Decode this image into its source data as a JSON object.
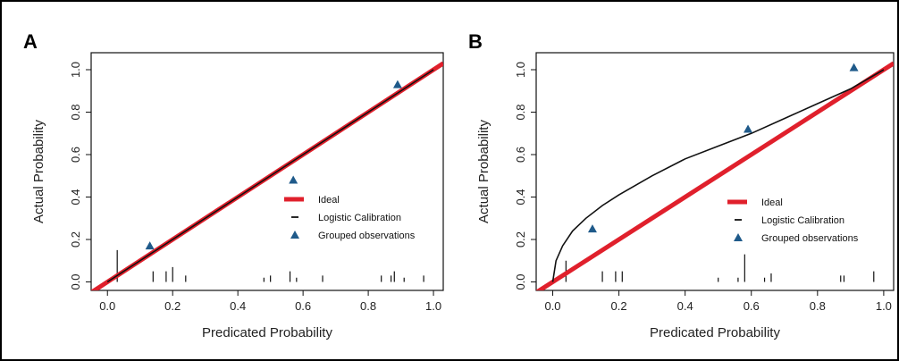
{
  "chart_data": [
    {
      "type": "line",
      "panel_label": "A",
      "xlabel": "Predicated Probability",
      "ylabel": "Actual Probability",
      "xlim": [
        -0.05,
        1.03
      ],
      "ylim": [
        -0.04,
        1.08
      ],
      "xticks": [
        "0.0",
        "0.2",
        "0.4",
        "0.6",
        "0.8",
        "1.0"
      ],
      "yticks": [
        "0.0",
        "0.2",
        "0.4",
        "0.6",
        "0.8",
        "1.0"
      ],
      "legend": {
        "position": "right",
        "entries": [
          "Ideal",
          "Logistic Calibration",
          "Grouped observations"
        ]
      },
      "series": [
        {
          "name": "Ideal",
          "color": "#e0202c",
          "x": [
            -0.05,
            1.03
          ],
          "y": [
            -0.05,
            1.03
          ]
        },
        {
          "name": "Logistic Calibration",
          "color": "#111111",
          "x": [
            0.0,
            0.2,
            0.4,
            0.6,
            0.8,
            1.0
          ],
          "y": [
            0.0,
            0.2,
            0.4,
            0.6,
            0.8,
            1.0
          ]
        },
        {
          "name": "Grouped observations",
          "color": "#1f5a8a",
          "x": [
            0.13,
            0.57,
            0.89
          ],
          "y": [
            0.17,
            0.48,
            0.93
          ]
        }
      ],
      "rug": [
        {
          "x": 0.03,
          "h": 0.15
        },
        {
          "x": 0.14,
          "h": 0.05
        },
        {
          "x": 0.18,
          "h": 0.05
        },
        {
          "x": 0.2,
          "h": 0.07
        },
        {
          "x": 0.24,
          "h": 0.03
        },
        {
          "x": 0.48,
          "h": 0.02
        },
        {
          "x": 0.5,
          "h": 0.03
        },
        {
          "x": 0.56,
          "h": 0.05
        },
        {
          "x": 0.58,
          "h": 0.02
        },
        {
          "x": 0.66,
          "h": 0.03
        },
        {
          "x": 0.84,
          "h": 0.03
        },
        {
          "x": 0.87,
          "h": 0.03
        },
        {
          "x": 0.88,
          "h": 0.05
        },
        {
          "x": 0.91,
          "h": 0.02
        },
        {
          "x": 0.97,
          "h": 0.03
        }
      ]
    },
    {
      "type": "line",
      "panel_label": "B",
      "xlabel": "Predicated Probability",
      "ylabel": "Actual Probability",
      "xlim": [
        -0.05,
        1.03
      ],
      "ylim": [
        -0.04,
        1.08
      ],
      "xticks": [
        "0.0",
        "0.2",
        "0.4",
        "0.6",
        "0.8",
        "1.0"
      ],
      "yticks": [
        "0.0",
        "0.2",
        "0.4",
        "0.6",
        "0.8",
        "1.0"
      ],
      "legend": {
        "position": "right",
        "entries": [
          "Ideal",
          "Logistic Calibration",
          "Grouped observations"
        ]
      },
      "series": [
        {
          "name": "Ideal",
          "color": "#e0202c",
          "x": [
            -0.05,
            1.03
          ],
          "y": [
            -0.05,
            1.03
          ]
        },
        {
          "name": "Logistic Calibration",
          "color": "#111111",
          "x": [
            0.0,
            0.01,
            0.03,
            0.06,
            0.1,
            0.15,
            0.2,
            0.3,
            0.4,
            0.5,
            0.6,
            0.7,
            0.8,
            0.9,
            1.0
          ],
          "y": [
            0.0,
            0.1,
            0.17,
            0.24,
            0.3,
            0.36,
            0.41,
            0.5,
            0.58,
            0.64,
            0.7,
            0.77,
            0.84,
            0.91,
            1.0
          ]
        },
        {
          "name": "Grouped observations",
          "color": "#1f5a8a",
          "x": [
            0.12,
            0.59,
            0.91
          ],
          "y": [
            0.25,
            0.72,
            1.01
          ]
        }
      ],
      "rug": [
        {
          "x": 0.04,
          "h": 0.1
        },
        {
          "x": 0.15,
          "h": 0.05
        },
        {
          "x": 0.19,
          "h": 0.05
        },
        {
          "x": 0.21,
          "h": 0.05
        },
        {
          "x": 0.5,
          "h": 0.02
        },
        {
          "x": 0.56,
          "h": 0.02
        },
        {
          "x": 0.58,
          "h": 0.13
        },
        {
          "x": 0.64,
          "h": 0.02
        },
        {
          "x": 0.66,
          "h": 0.04
        },
        {
          "x": 0.87,
          "h": 0.03
        },
        {
          "x": 0.88,
          "h": 0.03
        },
        {
          "x": 0.97,
          "h": 0.05
        }
      ]
    }
  ]
}
